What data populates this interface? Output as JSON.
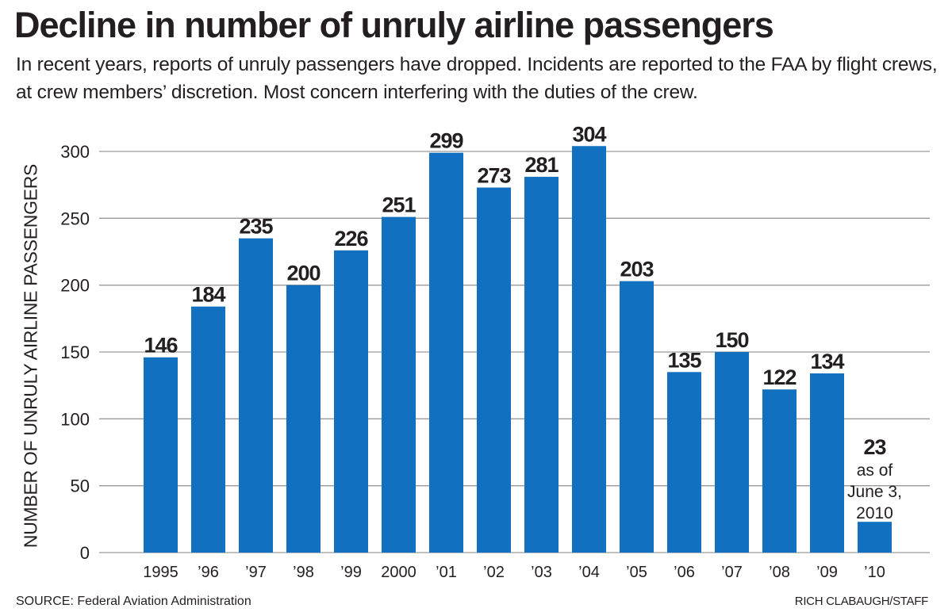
{
  "chart_data": {
    "type": "bar",
    "title": "Decline in number of unruly airline passengers",
    "subtitle": "In recent years, reports of unruly passengers have dropped. Incidents are reported to the FAA by flight crews, at crew members’ discretion. Most concern interfering with the duties of the crew.",
    "xlabel": "",
    "ylabel": "NUMBER OF UNRULY AIRLINE PASSENGERS",
    "ylim": [
      0,
      300
    ],
    "yticks": [
      0,
      50,
      100,
      150,
      200,
      250,
      300
    ],
    "grid": true,
    "categories": [
      "1995",
      "’96",
      "’97",
      "’98",
      "’99",
      "2000",
      "’01",
      "’02",
      "’03",
      "’04",
      "’05",
      "’06",
      "’07",
      "’08",
      "’09",
      "’10"
    ],
    "values": [
      146,
      184,
      235,
      200,
      226,
      251,
      299,
      273,
      281,
      304,
      203,
      135,
      150,
      122,
      134,
      23
    ],
    "data_labels": [
      "146",
      "184",
      "235",
      "200",
      "226",
      "251",
      "299",
      "273",
      "281",
      "304",
      "203",
      "135",
      "150",
      "122",
      "134",
      "23"
    ],
    "annotations": [
      {
        "category": "’10",
        "lines": [
          "as of",
          "June 3,",
          "2010"
        ]
      }
    ],
    "bar_color": "#1170bf",
    "gridline_color": "#9a9a9a",
    "source": "SOURCE: Federal Aviation Administration",
    "credit": "RICH CLABAUGH/STAFF"
  }
}
